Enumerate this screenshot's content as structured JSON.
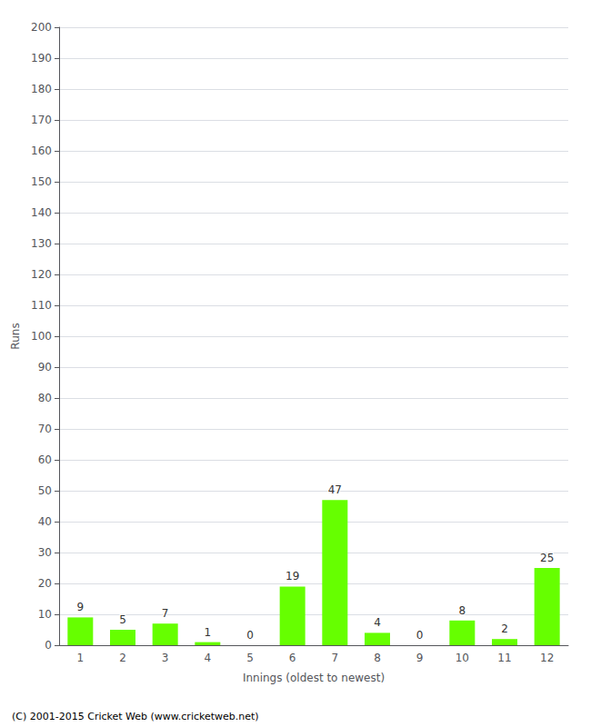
{
  "chart_data": {
    "type": "bar",
    "xlabel": "Innings (oldest to newest)",
    "ylabel": "Runs",
    "categories": [
      1,
      2,
      3,
      4,
      5,
      6,
      7,
      8,
      9,
      10,
      11,
      12
    ],
    "values": [
      9,
      5,
      7,
      1,
      0,
      19,
      47,
      4,
      0,
      8,
      2,
      25
    ],
    "color": "#66ff00",
    "ylim": [
      0,
      200
    ],
    "yticks": [
      0,
      10,
      20,
      30,
      40,
      50,
      60,
      70,
      80,
      90,
      100,
      110,
      120,
      130,
      140,
      150,
      160,
      170,
      180,
      190,
      200
    ],
    "grid": true,
    "data_labels": true,
    "footer": "(C) 2001-2015 Cricket Web (www.cricketweb.net)"
  }
}
